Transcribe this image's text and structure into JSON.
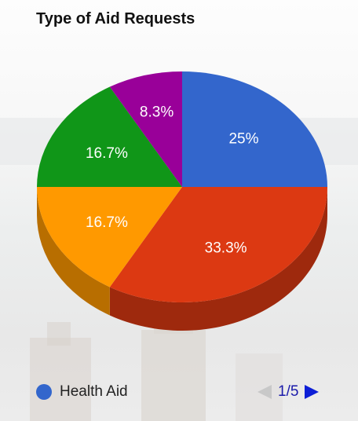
{
  "chart_data": {
    "type": "pie",
    "title": "Type of Aid Requests",
    "slices": [
      {
        "label": "Health Aid",
        "value": 25,
        "display": "25%",
        "color": "#3366cc"
      },
      {
        "value": 33.3,
        "display": "33.3%",
        "color": "#dc3912"
      },
      {
        "value": 16.7,
        "display": "16.7%",
        "color": "#ff9900"
      },
      {
        "value": 16.7,
        "display": "16.7%",
        "color": "#109618"
      },
      {
        "value": 8.3,
        "display": "8.3%",
        "color": "#990099"
      }
    ],
    "is_3d": true,
    "legend_position": "bottom"
  },
  "legend": {
    "visible_label": "Health Aid",
    "swatch_color": "#3366cc",
    "pager_text": "1/5"
  }
}
